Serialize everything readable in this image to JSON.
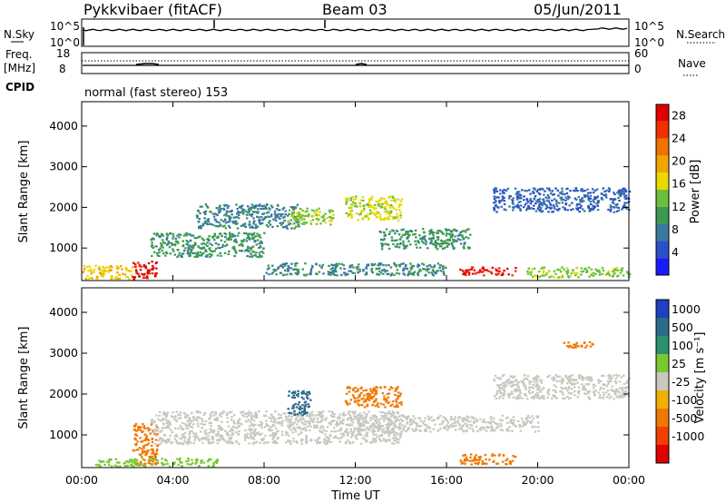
{
  "header": {
    "station": "Pykkvibaer (fitACF)",
    "beam": "Beam 03",
    "date": "05/Jun/2011"
  },
  "status_panels": {
    "nsky_label": "N.Sky",
    "nsky_ticks": [
      "10^5",
      "10^0"
    ],
    "nsearch_label": "N.Search",
    "nsearch_ticks": [
      "10^5",
      "10^0"
    ],
    "freq_label": "Freq.",
    "freq_unit": "[MHz]",
    "freq_ticks": [
      "18",
      "8"
    ],
    "nave_label": "Nave",
    "nave_ticks": [
      "60",
      "0"
    ],
    "cpid_label": "CPID",
    "cpid_text": "normal (fast stereo) 153"
  },
  "colors": {
    "power_scale": [
      "#1a1aff",
      "#2a50c8",
      "#3a78a0",
      "#3c9a50",
      "#6cbf3a",
      "#e8d800",
      "#f2a400",
      "#f07000",
      "#f03000",
      "#e00000"
    ],
    "velocity_scale": [
      "#2040c0",
      "#2a6a8a",
      "#2a9070",
      "#7ac830",
      "#c8c8c0",
      "#c8c8c0",
      "#f0b000",
      "#f07800",
      "#f04000",
      "#e00000"
    ],
    "ground_scatter": "#c8c8c0"
  },
  "chart_data": [
    {
      "type": "heatmap",
      "panel": "power",
      "ylabel": "Slant Range [km]",
      "yticks": [
        "1000",
        "2000",
        "3000",
        "4000"
      ],
      "ylim": [
        200,
        4600
      ],
      "xlim": [
        "00:00",
        "24:00"
      ],
      "colorbar_label": "Power [dB]",
      "colorbar_ticks": [
        "4",
        "8",
        "12",
        "16",
        "20",
        "24",
        "28"
      ],
      "colorbar_range": [
        0,
        30
      ],
      "features": [
        {
          "t0": 2.2,
          "t1": 3.3,
          "r0": 250,
          "r1": 700,
          "value": 28
        },
        {
          "t0": 0.0,
          "t1": 2.2,
          "r0": 250,
          "r1": 600,
          "value": 18
        },
        {
          "t0": 3.0,
          "t1": 8.0,
          "r0": 800,
          "r1": 1400,
          "value": 10
        },
        {
          "t0": 5.0,
          "t1": 9.5,
          "r0": 1500,
          "r1": 2100,
          "value": 8
        },
        {
          "t0": 9.0,
          "t1": 11.0,
          "r0": 1600,
          "r1": 2000,
          "value": 14
        },
        {
          "t0": 11.5,
          "t1": 14.0,
          "r0": 1700,
          "r1": 2300,
          "value": 16
        },
        {
          "t0": 13.0,
          "t1": 17.0,
          "r0": 1000,
          "r1": 1500,
          "value": 10
        },
        {
          "t0": 16.5,
          "t1": 19.0,
          "r0": 350,
          "r1": 550,
          "value": 27
        },
        {
          "t0": 8.0,
          "t1": 16.0,
          "r0": 350,
          "r1": 650,
          "value": 9
        },
        {
          "t0": 18.0,
          "t1": 24.0,
          "r0": 1900,
          "r1": 2500,
          "value": 6
        },
        {
          "t0": 19.5,
          "t1": 24.0,
          "r0": 300,
          "r1": 550,
          "value": 14
        }
      ]
    },
    {
      "type": "heatmap",
      "panel": "velocity",
      "xlabel": "Time UT",
      "ylabel": "Slant Range [km]",
      "xticks": [
        "00:00",
        "04:00",
        "08:00",
        "12:00",
        "16:00",
        "20:00",
        "00:00"
      ],
      "yticks": [
        "1000",
        "2000",
        "3000",
        "4000"
      ],
      "ylim": [
        200,
        4600
      ],
      "xlim": [
        "00:00",
        "24:00"
      ],
      "colorbar_label": "Velocity [m s⁻¹]",
      "colorbar_ticks": [
        "1000",
        "500",
        "100",
        "25",
        "-25",
        "-100",
        "-500",
        "-1000"
      ],
      "features": [
        {
          "t0": 2.2,
          "t1": 3.3,
          "r0": 250,
          "r1": 1300,
          "value": -400
        },
        {
          "t0": 0.5,
          "t1": 6.0,
          "r0": 250,
          "r1": 450,
          "value": 60
        },
        {
          "t0": 3.0,
          "t1": 14.0,
          "r0": 800,
          "r1": 1600,
          "value": 0
        },
        {
          "t0": 12.0,
          "t1": 20.0,
          "r0": 1100,
          "r1": 1500,
          "value": 0
        },
        {
          "t0": 16.5,
          "t1": 19.0,
          "r0": 300,
          "r1": 550,
          "value": -150
        },
        {
          "t0": 9.0,
          "t1": 10.0,
          "r0": 1500,
          "r1": 2100,
          "value": 800
        },
        {
          "t0": 11.5,
          "t1": 14.0,
          "r0": 1700,
          "r1": 2200,
          "value": -200
        },
        {
          "t0": 18.0,
          "t1": 24.0,
          "r0": 1900,
          "r1": 2500,
          "value": 0
        },
        {
          "t0": 21.0,
          "t1": 22.5,
          "r0": 3150,
          "r1": 3300,
          "value": -150
        }
      ]
    }
  ]
}
